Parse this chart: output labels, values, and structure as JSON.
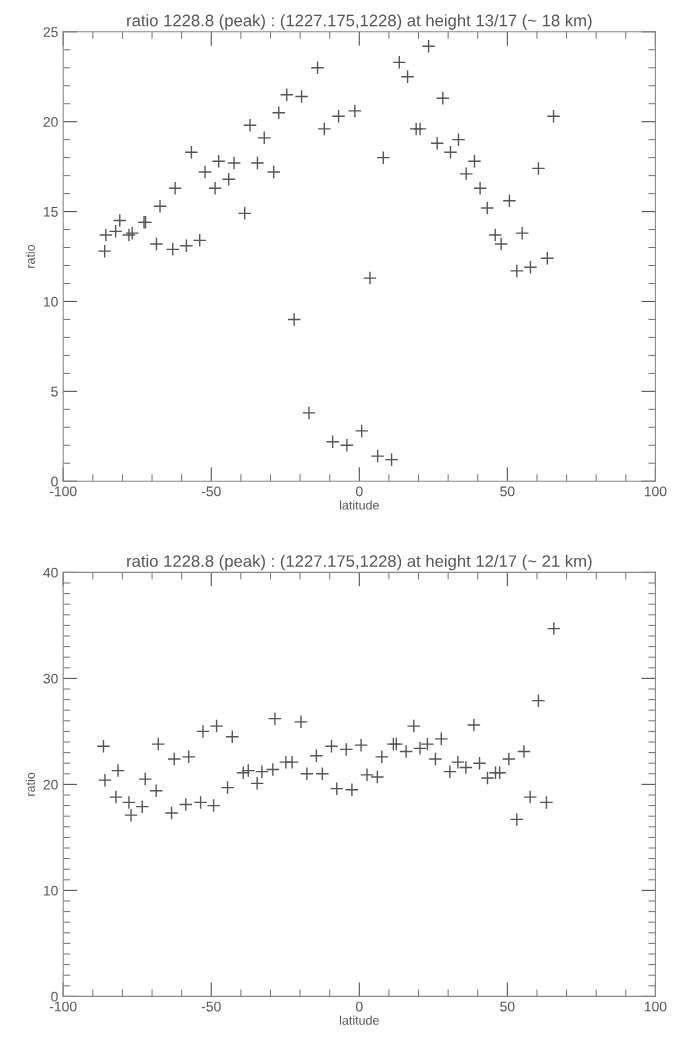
{
  "chart_data": [
    {
      "type": "scatter",
      "title": "ratio 1228.8 (peak) : (1227.175,1228) at height 13/17 (~ 18 km)",
      "xlabel": "latitude",
      "ylabel": "ratio",
      "marker": "cross",
      "grid": false,
      "xlim": [
        -100,
        100
      ],
      "xticks": [
        -100,
        -50,
        0,
        50,
        100
      ],
      "ylim": [
        0,
        25
      ],
      "yticks": [
        0,
        5,
        10,
        15,
        20,
        25
      ],
      "series": [
        {
          "color": "#555555",
          "x": [
            -86.0,
            -85.6,
            -82.3,
            -80.9,
            -77.8,
            -76.7,
            -72.7,
            -72.2,
            -68.5,
            -67.3,
            -63.0,
            -62.2,
            -58.4,
            -56.7,
            -53.9,
            -52.1,
            -48.7,
            -47.5,
            -44.1,
            -42.3,
            -38.7,
            -36.9,
            -34.4,
            -32.1,
            -28.9,
            -27.2,
            -24.5,
            -22.0,
            -19.5,
            -17.0,
            -14.1,
            -11.8,
            -9.0,
            -7.0,
            -4.2,
            -1.5,
            0.8,
            3.6,
            6.2,
            8.1,
            10.9,
            13.5,
            16.3,
            19.2,
            20.5,
            23.4,
            26.3,
            28.2,
            30.8,
            33.5,
            36.1,
            38.9,
            40.8,
            43.2,
            45.9,
            47.9,
            50.7,
            53.2,
            55.0,
            57.8,
            60.5,
            63.5,
            65.6
          ],
          "values": [
            12.8,
            13.7,
            13.9,
            14.5,
            13.7,
            13.8,
            14.4,
            14.4,
            13.2,
            15.3,
            12.9,
            16.3,
            13.1,
            18.3,
            13.4,
            17.2,
            16.3,
            17.8,
            16.8,
            17.7,
            14.9,
            19.8,
            17.7,
            19.1,
            17.2,
            20.5,
            21.5,
            9.0,
            21.4,
            3.8,
            23.0,
            19.6,
            2.2,
            20.3,
            2.0,
            20.6,
            2.8,
            11.3,
            1.4,
            18.0,
            1.2,
            23.3,
            22.5,
            19.6,
            19.6,
            24.2,
            18.8,
            21.3,
            18.3,
            19.0,
            17.1,
            17.8,
            16.3,
            15.2,
            13.7,
            13.2,
            15.6,
            11.7,
            13.8,
            11.9,
            17.4,
            12.4,
            20.3
          ]
        }
      ]
    },
    {
      "type": "scatter",
      "title": "ratio 1228.8 (peak) : (1227.175,1228) at height 12/17 (~ 21 km)",
      "xlabel": "latitude",
      "ylabel": "ratio",
      "marker": "cross",
      "grid": false,
      "xlim": [
        -100,
        100
      ],
      "xticks": [
        -100,
        -50,
        0,
        50,
        100
      ],
      "ylim": [
        0,
        40
      ],
      "yticks": [
        0,
        10,
        20,
        30,
        40
      ],
      "series": [
        {
          "color": "#555555",
          "x": [
            -86.4,
            -85.9,
            -82.2,
            -81.5,
            -77.8,
            -77.1,
            -73.3,
            -72.3,
            -68.6,
            -67.9,
            -63.4,
            -62.5,
            -58.6,
            -57.6,
            -53.6,
            -52.8,
            -49.2,
            -48.2,
            -44.5,
            -42.9,
            -39.2,
            -37.5,
            -34.5,
            -32.9,
            -29.2,
            -28.5,
            -24.8,
            -22.7,
            -19.7,
            -17.7,
            -14.5,
            -12.5,
            -9.4,
            -7.6,
            -4.4,
            -2.5,
            0.6,
            2.6,
            6.1,
            7.6,
            11.5,
            12.5,
            15.8,
            18.4,
            20.5,
            23.0,
            25.7,
            27.7,
            30.6,
            33.3,
            36.0,
            38.7,
            40.6,
            43.3,
            46.0,
            47.4,
            50.5,
            53.2,
            55.6,
            57.7,
            60.5,
            63.2,
            65.7
          ],
          "values": [
            23.6,
            20.4,
            18.8,
            21.3,
            18.3,
            17.1,
            17.9,
            20.5,
            19.4,
            23.8,
            17.3,
            22.4,
            18.1,
            22.6,
            18.3,
            25.0,
            18.0,
            25.5,
            19.7,
            24.5,
            21.1,
            21.3,
            20.1,
            21.2,
            21.4,
            26.2,
            22.1,
            22.1,
            25.9,
            21.0,
            22.7,
            21.0,
            23.6,
            19.6,
            23.3,
            19.5,
            23.7,
            20.9,
            20.7,
            22.6,
            23.8,
            23.8,
            23.1,
            25.5,
            23.4,
            23.8,
            22.4,
            24.3,
            21.2,
            22.1,
            21.6,
            25.6,
            22.0,
            20.6,
            21.1,
            21.1,
            22.4,
            16.7,
            23.1,
            18.8,
            27.9,
            18.3,
            34.7
          ]
        }
      ]
    }
  ]
}
